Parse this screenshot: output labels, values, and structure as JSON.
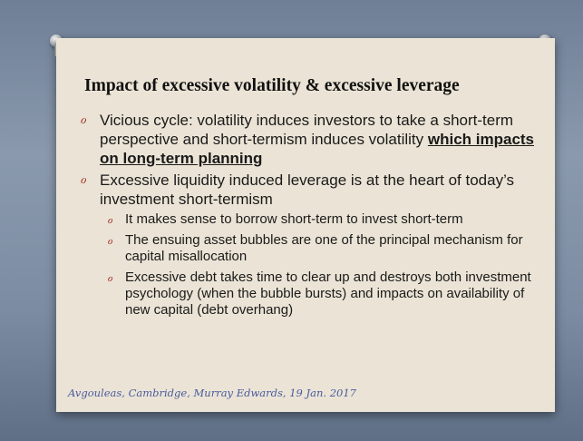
{
  "slide": {
    "title": "Impact of excessive volatility & excessive leverage",
    "bullets": [
      {
        "text": "Vicious cycle: volatility induces investors to take a short-term perspective and short-termism induces volatility ",
        "emphasis": "which impacts on long-term planning",
        "subs": []
      },
      {
        "text": "Excessive liquidity  induced  leverage is at the heart of today’s investment short-termism",
        "subs": [
          "It makes sense to borrow short-term to invest short-term",
          "The ensuing asset bubbles are one of the principal mechanism for capital misallocation",
          "Excessive debt takes time to clear up and destroys both investment psychology (when the bubble bursts) and impacts on availability of new capital (debt overhang)"
        ]
      }
    ],
    "footer": "Avgouleas, Cambridge, Murray Edwards, 19 Jan. 2017"
  }
}
